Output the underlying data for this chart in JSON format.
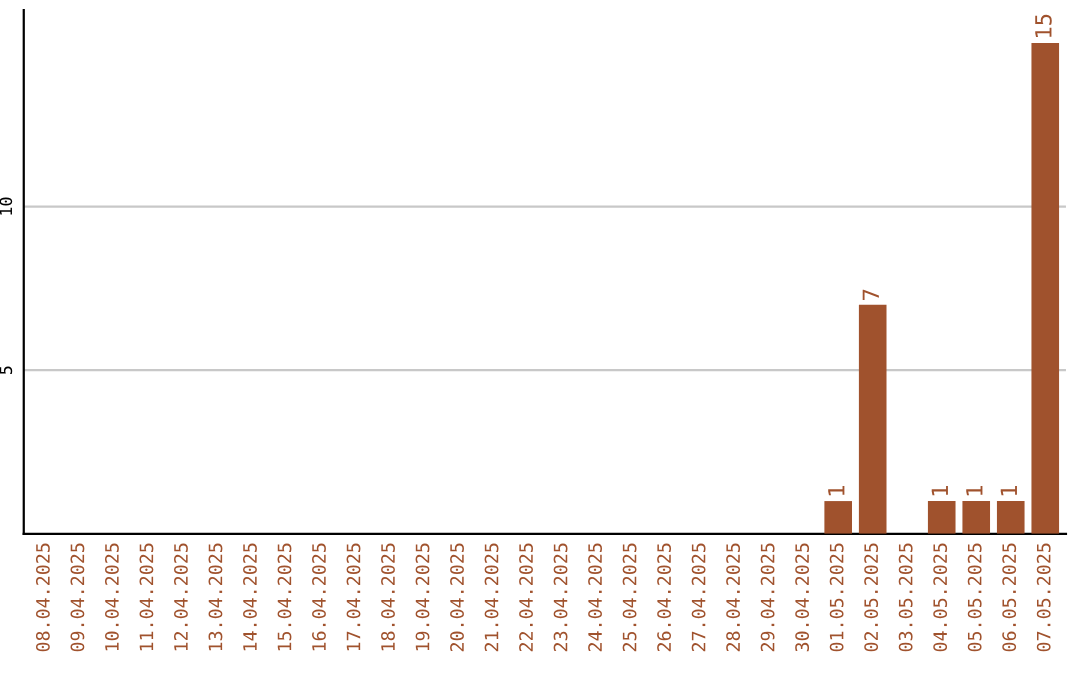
{
  "chart_data": {
    "type": "bar",
    "categories": [
      "08.04.2025",
      "09.04.2025",
      "10.04.2025",
      "11.04.2025",
      "12.04.2025",
      "13.04.2025",
      "14.04.2025",
      "15.04.2025",
      "16.04.2025",
      "17.04.2025",
      "18.04.2025",
      "19.04.2025",
      "20.04.2025",
      "21.04.2025",
      "22.04.2025",
      "23.04.2025",
      "24.04.2025",
      "25.04.2025",
      "26.04.2025",
      "27.04.2025",
      "28.04.2025",
      "29.04.2025",
      "30.04.2025",
      "01.05.2025",
      "02.05.2025",
      "03.05.2025",
      "04.05.2025",
      "05.05.2025",
      "06.05.2025",
      "07.05.2025"
    ],
    "values": [
      0,
      0,
      0,
      0,
      0,
      0,
      0,
      0,
      0,
      0,
      0,
      0,
      0,
      0,
      0,
      0,
      0,
      0,
      0,
      0,
      0,
      0,
      0,
      1,
      7,
      0,
      1,
      1,
      1,
      15
    ],
    "value_labels": [
      null,
      null,
      null,
      null,
      null,
      null,
      null,
      null,
      null,
      null,
      null,
      null,
      null,
      null,
      null,
      null,
      null,
      null,
      null,
      null,
      null,
      null,
      null,
      "1",
      "7",
      null,
      "1",
      "1",
      "1",
      "15"
    ],
    "color": "#a0522d",
    "ylim": [
      0,
      16
    ],
    "yticks": [
      5,
      10
    ],
    "grid": "y"
  }
}
